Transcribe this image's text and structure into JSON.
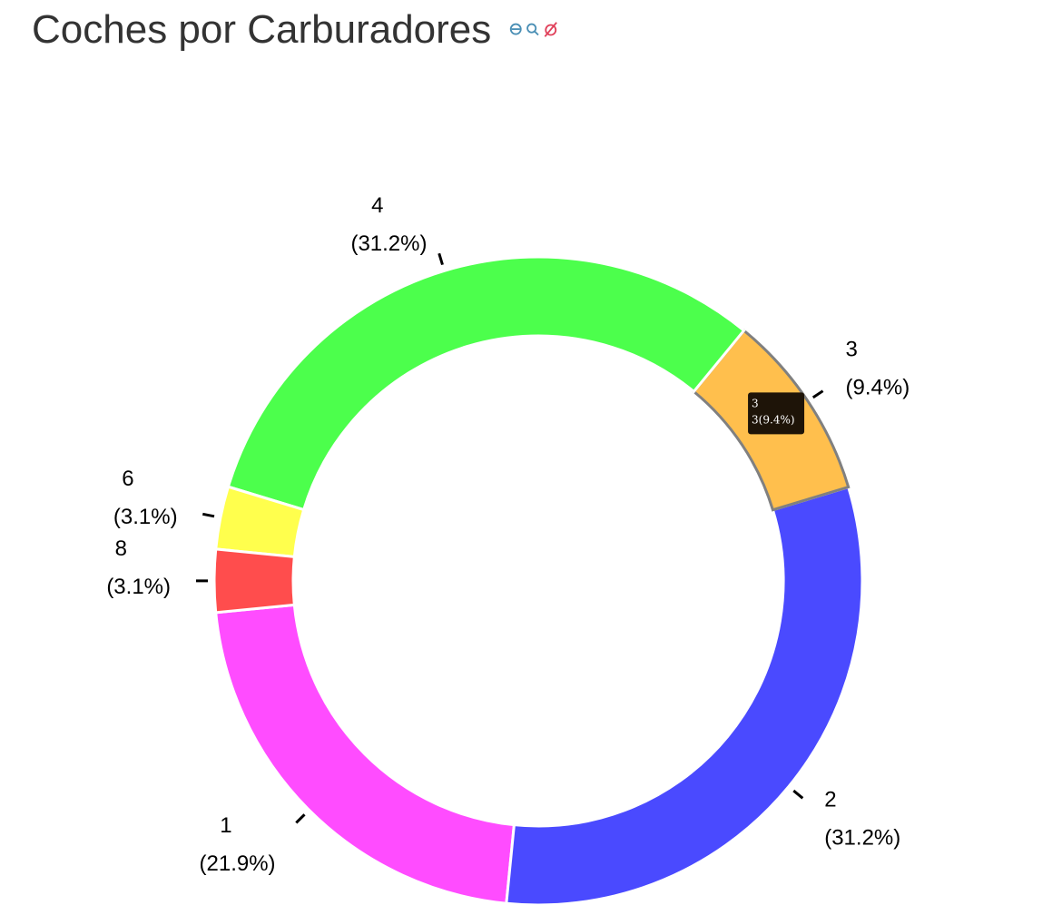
{
  "page": {
    "title": "Coches por Carburadores",
    "toolbar": [
      {
        "name": "zoom-selection-icon",
        "color": "#4a8fb5"
      },
      {
        "name": "magnify-icon",
        "color": "#4a8fb5"
      },
      {
        "name": "reset-icon",
        "color": "#e0405a"
      }
    ]
  },
  "chart_data": {
    "type": "pie",
    "variant": "donut",
    "title": "Coches por Carburadores",
    "slices": [
      {
        "label": "1",
        "value": 7,
        "percent": "(21.9%)",
        "color": "#ff4cff"
      },
      {
        "label": "2",
        "value": 10,
        "percent": "(31.2%)",
        "color": "#4a4aff"
      },
      {
        "label": "3",
        "value": 3,
        "percent": "(9.4%)",
        "color": "#ffbf4d"
      },
      {
        "label": "4",
        "value": 10,
        "percent": "(31.2%)",
        "color": "#4cff4c"
      },
      {
        "label": "6",
        "value": 1,
        "percent": "(3.1%)",
        "color": "#ffff4d"
      },
      {
        "label": "8",
        "value": 1,
        "percent": "(3.1%)",
        "color": "#ff4d4d"
      }
    ],
    "highlighted": "3",
    "tooltip": {
      "line1": "3",
      "line2": "3(9.4%)"
    }
  }
}
